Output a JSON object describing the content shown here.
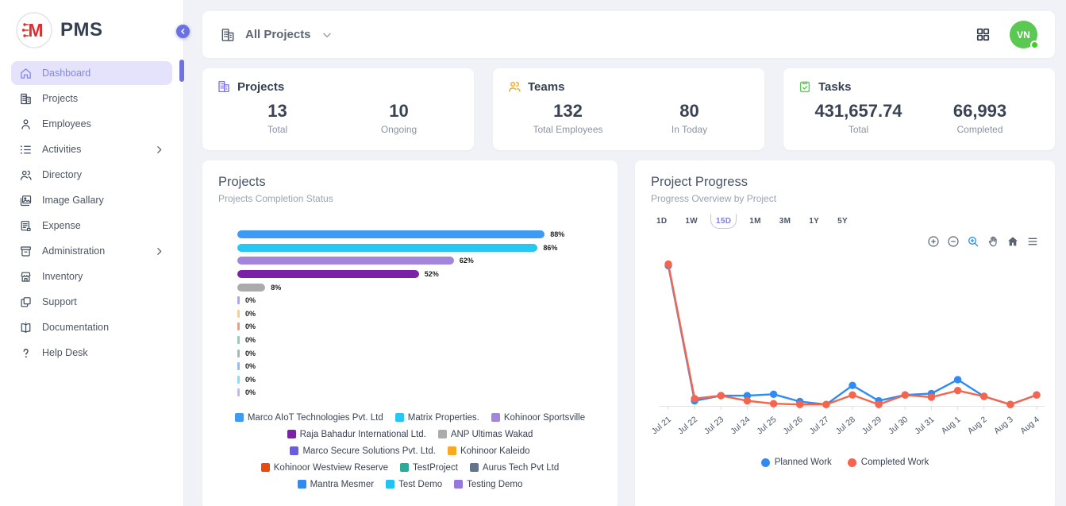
{
  "app": {
    "name": "PMS",
    "logo_letter": "M"
  },
  "sidebar": {
    "items": [
      {
        "label": "Dashboard",
        "icon": "home-icon",
        "active": true,
        "submenu": false
      },
      {
        "label": "Projects",
        "icon": "building-icon",
        "active": false,
        "submenu": false
      },
      {
        "label": "Employees",
        "icon": "person-icon",
        "active": false,
        "submenu": false
      },
      {
        "label": "Activities",
        "icon": "list-icon",
        "active": false,
        "submenu": true
      },
      {
        "label": "Directory",
        "icon": "users-icon",
        "active": false,
        "submenu": false
      },
      {
        "label": "Image Gallary",
        "icon": "image-icon",
        "active": false,
        "submenu": false
      },
      {
        "label": "Expense",
        "icon": "receipt-icon",
        "active": false,
        "submenu": false
      },
      {
        "label": "Administration",
        "icon": "archive-icon",
        "active": false,
        "submenu": true
      },
      {
        "label": "Inventory",
        "icon": "store-icon",
        "active": false,
        "submenu": false
      },
      {
        "label": "Support",
        "icon": "copy-icon",
        "active": false,
        "submenu": false
      },
      {
        "label": "Documentation",
        "icon": "book-icon",
        "active": false,
        "submenu": false
      },
      {
        "label": "Help Desk",
        "icon": "help-icon",
        "active": false,
        "submenu": false
      }
    ]
  },
  "topbar": {
    "filter_label": "All Projects",
    "avatar_initials": "VN"
  },
  "stats": [
    {
      "title": "Projects",
      "icon": "building-icon",
      "icon_color": "#7c6ff0",
      "metrics": [
        {
          "value": "13",
          "label": "Total"
        },
        {
          "value": "10",
          "label": "Ongoing"
        }
      ]
    },
    {
      "title": "Teams",
      "icon": "team-icon",
      "icon_color": "#f5a623",
      "metrics": [
        {
          "value": "132",
          "label": "Total Employees"
        },
        {
          "value": "80",
          "label": "In Today"
        }
      ]
    },
    {
      "title": "Tasks",
      "icon": "clipboard-check-icon",
      "icon_color": "#5cc858",
      "metrics": [
        {
          "value": "431,657.74",
          "label": "Total"
        },
        {
          "value": "66,993",
          "label": "Completed"
        }
      ]
    }
  ],
  "panels": {
    "projects": {
      "title": "Projects",
      "subtitle": "Projects Completion Status"
    },
    "progress": {
      "title": "Project Progress",
      "subtitle": "Progress Overview by Project",
      "ranges": [
        "1D",
        "1W",
        "15D",
        "1M",
        "3M",
        "1Y",
        "5Y"
      ],
      "active_range": "15D"
    }
  },
  "chart_data": [
    {
      "id": "projects-completion",
      "type": "bar",
      "orientation": "horizontal",
      "unit": "%",
      "xlim": [
        0,
        100
      ],
      "series": [
        {
          "label": "Marco AIoT Technologies Pvt. Ltd",
          "value": 88,
          "color": "#3d9af5"
        },
        {
          "label": "Matrix Properties.",
          "value": 86,
          "color": "#25c7f4"
        },
        {
          "label": "Kohinoor Sportsville",
          "value": 62,
          "color": "#a186db"
        },
        {
          "label": "Raja Bahadur International Ltd.",
          "value": 52,
          "color": "#7b21a8"
        },
        {
          "label": "ANP Ultimas Wakad",
          "value": 8,
          "color": "#ababab"
        },
        {
          "label": "Marco Secure Solutions Pvt. Ltd.",
          "value": 0,
          "color": "#6c5ce0"
        },
        {
          "label": "Kohinoor Kaleido",
          "value": 0,
          "color": "#f9a825"
        },
        {
          "label": "Kohinoor Westview Reserve",
          "value": 0,
          "color": "#e84a12"
        },
        {
          "label": "TestProject",
          "value": 0,
          "color": "#2ba99b"
        },
        {
          "label": "Aurus Tech Pvt Ltd",
          "value": 0,
          "color": "#64748b"
        },
        {
          "label": "Mantra Mesmer",
          "value": 0,
          "color": "#2f8af5"
        },
        {
          "label": "Test Demo",
          "value": 0,
          "color": "#22c3f0"
        },
        {
          "label": "Testing Demo",
          "value": 0,
          "color": "#9678db"
        }
      ]
    },
    {
      "id": "project-progress",
      "type": "line",
      "x": [
        "Jul 21",
        "Jul 22",
        "Jul 23",
        "Jul 24",
        "Jul 25",
        "Jul 26",
        "Jul 27",
        "Jul 28",
        "Jul 29",
        "Jul 30",
        "Jul 31",
        "Aug 1",
        "Aug 2",
        "Aug 3",
        "Aug 4"
      ],
      "ylim": [
        0,
        100
      ],
      "legend_position": "bottom",
      "series": [
        {
          "name": "Planned Work",
          "color": "#2f8af5",
          "values": [
            96,
            3.5,
            7,
            7,
            8,
            3,
            1,
            14,
            3.5,
            7.5,
            8.5,
            18,
            6.5,
            1,
            7.5
          ]
        },
        {
          "name": "Completed Work",
          "color": "#f5654e",
          "values": [
            97,
            5,
            7,
            3.5,
            1.5,
            1,
            1,
            7.5,
            1,
            7.5,
            6,
            10.5,
            6.5,
            1,
            7.5
          ]
        }
      ]
    }
  ]
}
